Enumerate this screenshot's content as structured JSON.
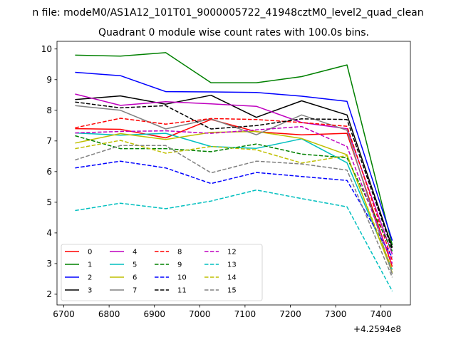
{
  "figure": {
    "suptitle": "n file: modeM0/AS1A12_101T01_9000005722_41948cztM0_level2_quad_clean",
    "title": "Quadrant 0 module wise count rates with 100.0s bins.",
    "x_offset_label": "+4.2594e8"
  },
  "chart_data": {
    "type": "line",
    "title": "Quadrant 0 module wise count rates with 100.0s bins.",
    "x_offset": 425940000,
    "x": [
      6725,
      6825,
      6925,
      7025,
      7125,
      7225,
      7325,
      7425
    ],
    "xlim": [
      6685,
      7465
    ],
    "ylim": [
      1.65,
      10.25
    ],
    "xticks": [
      6700,
      6800,
      6900,
      7000,
      7100,
      7200,
      7300,
      7400
    ],
    "yticks": [
      2,
      3,
      4,
      5,
      6,
      7,
      8,
      9,
      10
    ],
    "legend_position": "lower-left",
    "legend_columns": 4,
    "series": [
      {
        "name": "0",
        "color": "#ff0000",
        "dash": "solid",
        "values": [
          7.4,
          7.38,
          7.1,
          7.7,
          7.3,
          7.2,
          7.25,
          2.9
        ]
      },
      {
        "name": "1",
        "color": "#008000",
        "dash": "solid",
        "values": [
          9.8,
          9.77,
          9.88,
          8.9,
          8.9,
          9.1,
          9.48,
          3.6
        ]
      },
      {
        "name": "2",
        "color": "#0000ff",
        "dash": "solid",
        "values": [
          9.24,
          9.13,
          8.61,
          8.6,
          8.58,
          8.46,
          8.29,
          3.75
        ]
      },
      {
        "name": "3",
        "color": "#000000",
        "dash": "solid",
        "values": [
          8.35,
          8.47,
          8.2,
          8.49,
          7.77,
          8.31,
          7.85,
          3.52
        ]
      },
      {
        "name": "4",
        "color": "#bf00bf",
        "dash": "solid",
        "values": [
          8.53,
          8.16,
          8.28,
          8.21,
          8.13,
          7.6,
          7.4,
          3.3
        ]
      },
      {
        "name": "5",
        "color": "#00bfbf",
        "dash": "solid",
        "values": [
          7.26,
          7.19,
          7.25,
          6.82,
          6.76,
          7.07,
          6.29,
          2.8
        ]
      },
      {
        "name": "6",
        "color": "#bfbf00",
        "dash": "solid",
        "values": [
          6.93,
          7.24,
          7.05,
          7.28,
          7.31,
          7.08,
          6.55,
          2.7
        ]
      },
      {
        "name": "7",
        "color": "#808080",
        "dash": "solid",
        "values": [
          8.15,
          8.0,
          7.39,
          7.72,
          7.2,
          7.85,
          7.35,
          2.65
        ]
      },
      {
        "name": "8",
        "color": "#ff0000",
        "dash": "dashed",
        "values": [
          7.43,
          7.74,
          7.55,
          7.73,
          7.7,
          7.6,
          7.48,
          3.1
        ]
      },
      {
        "name": "9",
        "color": "#008000",
        "dash": "dashed",
        "values": [
          7.17,
          6.75,
          6.75,
          6.65,
          6.9,
          6.57,
          6.45,
          3.4
        ]
      },
      {
        "name": "10",
        "color": "#0000ff",
        "dash": "dashed",
        "values": [
          6.12,
          6.34,
          6.12,
          5.61,
          5.97,
          5.84,
          5.71,
          3.2
        ]
      },
      {
        "name": "11",
        "color": "#000000",
        "dash": "dashed",
        "values": [
          8.27,
          8.08,
          8.15,
          7.39,
          7.5,
          7.72,
          7.7,
          3.45
        ]
      },
      {
        "name": "12",
        "color": "#bf00bf",
        "dash": "dashed",
        "values": [
          7.26,
          7.31,
          7.33,
          7.25,
          7.36,
          7.47,
          6.82,
          3.0
        ]
      },
      {
        "name": "13",
        "color": "#00bfbf",
        "dash": "dashed",
        "values": [
          4.73,
          4.97,
          4.79,
          5.04,
          5.4,
          5.12,
          4.85,
          2.1
        ]
      },
      {
        "name": "14",
        "color": "#bfbf00",
        "dash": "dashed",
        "values": [
          6.75,
          7.02,
          6.6,
          6.82,
          6.71,
          6.28,
          6.52,
          2.8
        ]
      },
      {
        "name": "15",
        "color": "#808080",
        "dash": "dashed",
        "values": [
          6.38,
          6.85,
          6.85,
          5.96,
          6.34,
          6.25,
          6.05,
          2.55
        ]
      }
    ]
  }
}
